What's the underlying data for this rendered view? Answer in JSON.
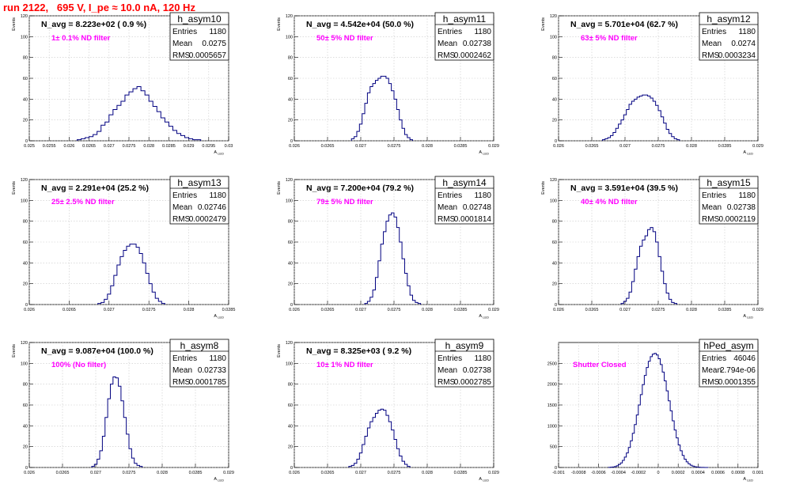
{
  "header": {
    "title": "run 2122,   695 V, I_pe ≈ 10.0 nA, 120 Hz"
  },
  "colors": {
    "title": "#ff0000",
    "histogram_line": "#000080",
    "filter_label": "#ff00ff",
    "grid": "#c8c8c8"
  },
  "chart_data": [
    {
      "type": "bar",
      "name": "h_asym10",
      "nav_text": "N_avg = 8.223e+02 ( 0.9 %)",
      "filter_label": "1± 0.1% ND filter",
      "stats": [
        {
          "label": "Entries",
          "value": "1180"
        },
        {
          "label": "Mean",
          "value": "0.0275"
        },
        {
          "label": "RMS",
          "value": "0.0005657"
        }
      ],
      "xlabel": "A",
      "xlabel_sub": "LED",
      "ylabel": "Events",
      "xlim": [
        0.025,
        0.03
      ],
      "ylim": [
        0,
        120
      ],
      "xticks": [
        "0.025",
        "0.0255",
        "0.026",
        "0.0265",
        "0.027",
        "0.0275",
        "0.028",
        "0.0285",
        "0.029",
        "0.0295",
        "0.03"
      ],
      "yticks": [
        "0",
        "20",
        "40",
        "60",
        "80",
        "100",
        "120"
      ],
      "bins": {
        "start": 0.0262,
        "width": 0.0001,
        "counts": [
          1,
          2,
          3,
          4,
          6,
          9,
          15,
          18,
          25,
          30,
          34,
          38,
          44,
          47,
          50,
          52,
          48,
          44,
          38,
          33,
          28,
          22,
          18,
          14,
          10,
          7,
          5,
          3,
          2,
          1,
          1
        ]
      }
    },
    {
      "type": "bar",
      "name": "h_asym11",
      "nav_text": "N_avg = 4.542e+04 (50.0 %)",
      "filter_label": "50± 5% ND filter",
      "stats": [
        {
          "label": "Entries",
          "value": "1180"
        },
        {
          "label": "Mean",
          "value": "0.02738"
        },
        {
          "label": "RMS",
          "value": "0.0002462"
        }
      ],
      "xlabel": "A",
      "xlabel_sub": "LED",
      "ylabel": "Events",
      "xlim": [
        0.026,
        0.029
      ],
      "ylim": [
        0,
        120
      ],
      "xticks": [
        "0.026",
        "0.0265",
        "0.027",
        "0.0275",
        "0.028",
        "0.0285",
        "0.029"
      ],
      "yticks": [
        "0",
        "20",
        "40",
        "60",
        "80",
        "100",
        "120"
      ],
      "bins": {
        "start": 0.02686,
        "width": 4e-05,
        "counts": [
          2,
          4,
          9,
          16,
          26,
          36,
          46,
          52,
          55,
          58,
          60,
          62,
          62,
          60,
          55,
          48,
          40,
          30,
          20,
          12,
          6,
          3,
          1
        ]
      }
    },
    {
      "type": "bar",
      "name": "h_asym12",
      "nav_text": "N_avg = 5.701e+04 (62.7 %)",
      "filter_label": "63± 5% ND filter",
      "stats": [
        {
          "label": "Entries",
          "value": "1180"
        },
        {
          "label": "Mean",
          "value": "0.0274"
        },
        {
          "label": "RMS",
          "value": "0.0003234"
        }
      ],
      "xlabel": "A",
      "xlabel_sub": "LED",
      "ylabel": "Events",
      "xlim": [
        0.026,
        0.029
      ],
      "ylim": [
        0,
        120
      ],
      "xticks": [
        "0.026",
        "0.0265",
        "0.027",
        "0.0275",
        "0.028",
        "0.0285",
        "0.029"
      ],
      "yticks": [
        "0",
        "20",
        "40",
        "60",
        "80",
        "100",
        "120"
      ],
      "bins": {
        "start": 0.02666,
        "width": 4e-05,
        "counts": [
          1,
          2,
          3,
          5,
          8,
          12,
          16,
          20,
          25,
          30,
          35,
          38,
          40,
          42,
          43,
          44,
          44,
          43,
          41,
          38,
          34,
          29,
          23,
          17,
          11,
          7,
          4,
          2,
          1
        ]
      }
    },
    {
      "type": "bar",
      "name": "h_asym13",
      "nav_text": "N_avg = 2.291e+04 (25.2 %)",
      "filter_label": "25± 2.5% ND filter",
      "stats": [
        {
          "label": "Entries",
          "value": "1180"
        },
        {
          "label": "Mean",
          "value": "0.02746"
        },
        {
          "label": "RMS",
          "value": "0.0002479"
        }
      ],
      "xlabel": "A",
      "xlabel_sub": "LED",
      "ylabel": "Events",
      "xlim": [
        0.026,
        0.0285
      ],
      "ylim": [
        0,
        120
      ],
      "xticks": [
        "0.026",
        "0.0265",
        "0.027",
        "0.0275",
        "0.028",
        "0.0285"
      ],
      "yticks": [
        "0",
        "20",
        "40",
        "60",
        "80",
        "100",
        "120"
      ],
      "bins": {
        "start": 0.02686,
        "width": 4e-05,
        "counts": [
          1,
          2,
          5,
          10,
          18,
          28,
          38,
          46,
          52,
          56,
          58,
          58,
          55,
          49,
          40,
          30,
          20,
          12,
          6,
          3,
          1
        ]
      }
    },
    {
      "type": "bar",
      "name": "h_asym14",
      "nav_text": "N_avg = 7.200e+04 (79.2 %)",
      "filter_label": "79± 5% ND filter",
      "stats": [
        {
          "label": "Entries",
          "value": "1180"
        },
        {
          "label": "Mean",
          "value": "0.02748"
        },
        {
          "label": "RMS",
          "value": "0.0001814"
        }
      ],
      "xlabel": "A",
      "xlabel_sub": "LED",
      "ylabel": "Events",
      "xlim": [
        0.026,
        0.029
      ],
      "ylim": [
        0,
        120
      ],
      "xticks": [
        "0.026",
        "0.0265",
        "0.027",
        "0.0275",
        "0.028",
        "0.0285",
        "0.029"
      ],
      "yticks": [
        "0",
        "20",
        "40",
        "60",
        "80",
        "100",
        "120"
      ],
      "bins": {
        "start": 0.02706,
        "width": 4e-05,
        "counts": [
          1,
          3,
          7,
          14,
          26,
          42,
          58,
          70,
          80,
          86,
          88,
          84,
          74,
          60,
          44,
          30,
          18,
          9,
          4,
          2,
          1
        ]
      }
    },
    {
      "type": "bar",
      "name": "h_asym15",
      "nav_text": "N_avg = 3.591e+04 (39.5 %)",
      "filter_label": "40± 4% ND filter",
      "stats": [
        {
          "label": "Entries",
          "value": "1180"
        },
        {
          "label": "Mean",
          "value": "0.02738"
        },
        {
          "label": "RMS",
          "value": "0.0002119"
        }
      ],
      "xlabel": "A",
      "xlabel_sub": "LED",
      "ylabel": "Events",
      "xlim": [
        0.026,
        0.029
      ],
      "ylim": [
        0,
        120
      ],
      "xticks": [
        "0.026",
        "0.0265",
        "0.027",
        "0.0275",
        "0.028",
        "0.0285",
        "0.029"
      ],
      "yticks": [
        "0",
        "20",
        "40",
        "60",
        "80",
        "100",
        "120"
      ],
      "bins": {
        "start": 0.02694,
        "width": 4e-05,
        "counts": [
          1,
          3,
          6,
          12,
          22,
          34,
          46,
          56,
          62,
          66,
          72,
          74,
          70,
          60,
          46,
          32,
          20,
          11,
          5,
          2,
          1
        ]
      }
    },
    {
      "type": "bar",
      "name": "h_asym8",
      "nav_text": "N_avg = 9.087e+04 (100.0 %)",
      "filter_label": "100% (No filter)",
      "stats": [
        {
          "label": "Entries",
          "value": "1180"
        },
        {
          "label": "Mean",
          "value": "0.02733"
        },
        {
          "label": "RMS",
          "value": "0.0001785"
        }
      ],
      "xlabel": "A",
      "xlabel_sub": "LED",
      "ylabel": "Events",
      "xlim": [
        0.026,
        0.029
      ],
      "ylim": [
        0,
        120
      ],
      "xticks": [
        "0.026",
        "0.0265",
        "0.027",
        "0.0275",
        "0.028",
        "0.0285",
        "0.029"
      ],
      "yticks": [
        "0",
        "20",
        "40",
        "60",
        "80",
        "100",
        "120"
      ],
      "bins": {
        "start": 0.02694,
        "width": 4e-05,
        "counts": [
          1,
          3,
          8,
          16,
          30,
          48,
          66,
          80,
          87,
          86,
          78,
          64,
          48,
          32,
          18,
          9,
          4,
          2,
          1
        ]
      }
    },
    {
      "type": "bar",
      "name": "h_asym9",
      "nav_text": "N_avg = 8.325e+03 ( 9.2 %)",
      "filter_label": "10± 1% ND filter",
      "stats": [
        {
          "label": "Entries",
          "value": "1180"
        },
        {
          "label": "Mean",
          "value": "0.02738"
        },
        {
          "label": "RMS",
          "value": "0.0002785"
        }
      ],
      "xlabel": "A",
      "xlabel_sub": "LED",
      "ylabel": "Events",
      "xlim": [
        0.026,
        0.029
      ],
      "ylim": [
        0,
        120
      ],
      "xticks": [
        "0.026",
        "0.0265",
        "0.027",
        "0.0275",
        "0.028",
        "0.0285",
        "0.029"
      ],
      "yticks": [
        "0",
        "20",
        "40",
        "60",
        "80",
        "100",
        "120"
      ],
      "bins": {
        "start": 0.02682,
        "width": 4e-05,
        "counts": [
          1,
          2,
          4,
          8,
          14,
          22,
          30,
          38,
          44,
          48,
          52,
          55,
          56,
          55,
          50,
          44,
          36,
          27,
          18,
          11,
          6,
          3,
          1
        ]
      }
    },
    {
      "type": "bar",
      "name": "hPed_asym",
      "nav_text": "",
      "filter_label": "Shutter Closed",
      "stats": [
        {
          "label": "Entries",
          "value": "46046"
        },
        {
          "label": "Mean",
          "value": "2.794e-06"
        },
        {
          "label": "RMS",
          "value": "0.0001355"
        }
      ],
      "xlabel": "A",
      "xlabel_sub": "LED",
      "ylabel": "",
      "xlim": [
        -0.001,
        0.001
      ],
      "ylim": [
        0,
        3000
      ],
      "xticks": [
        "-0.001",
        "-0.0008",
        "-0.0006",
        "-0.0004",
        "-0.0002",
        "0",
        "0.0002",
        "0.0004",
        "0.0006",
        "0.0008",
        "0.001"
      ],
      "yticks": [
        "0",
        "500",
        "1000",
        "1500",
        "2000",
        "2500"
      ],
      "bins": {
        "start": -0.0005,
        "width": 2e-05,
        "counts": [
          3,
          6,
          12,
          22,
          40,
          70,
          110,
          170,
          250,
          350,
          480,
          640,
          820,
          1030,
          1260,
          1500,
          1750,
          1990,
          2210,
          2400,
          2550,
          2660,
          2720,
          2740,
          2700,
          2610,
          2470,
          2290,
          2080,
          1840,
          1600,
          1360,
          1120,
          900,
          710,
          540,
          400,
          290,
          200,
          135,
          88,
          55,
          34,
          20,
          11,
          6,
          3,
          2,
          1,
          1
        ]
      }
    }
  ]
}
